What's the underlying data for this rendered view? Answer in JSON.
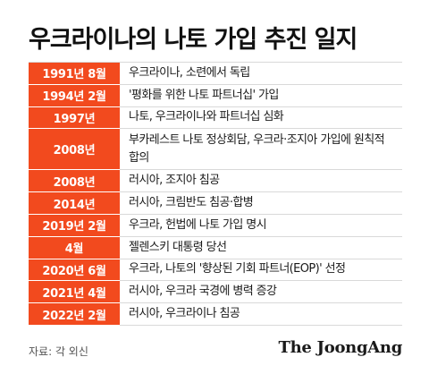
{
  "title": "우크라이나의 나토 가입 추진 일지",
  "rows": [
    {
      "date": "1991년 8월",
      "event": "우크라이나, 소련에서 독립"
    },
    {
      "date": "1994년 2월",
      "event": "'평화를 위한 나토 파트너십' 가입"
    },
    {
      "date": "1997년",
      "event": "나토, 우크라이나와 파트너십 심화"
    },
    {
      "date": "2008년",
      "event": "부카레스트 나토 정상회담, 우크라·조지아 가입에 원칙적 합의"
    },
    {
      "date": "2008년",
      "event": "러시아, 조지아 침공"
    },
    {
      "date": "2014년",
      "event": "러시아, 크림반도 침공·합병"
    },
    {
      "date": "2019년 2월",
      "event": "우크라, 헌법에 나토 가입 명시"
    },
    {
      "date": "4월",
      "event": "젤렌스키 대통령 당선"
    },
    {
      "date": "2020년 6월",
      "event": "우크라, 나토의 '향상된 기회 파트너(EOP)' 선정"
    },
    {
      "date": "2021년 4월",
      "event": "러시아, 우크라 국경에 병력 증강"
    },
    {
      "date": "2022년 2월",
      "event": "러시아, 우크라이나 침공"
    }
  ],
  "source": "자료: 각 외신",
  "logo": "The JoongAng",
  "colors": {
    "accent": "#f24a1e",
    "row_divider": "#d9d9d9"
  }
}
